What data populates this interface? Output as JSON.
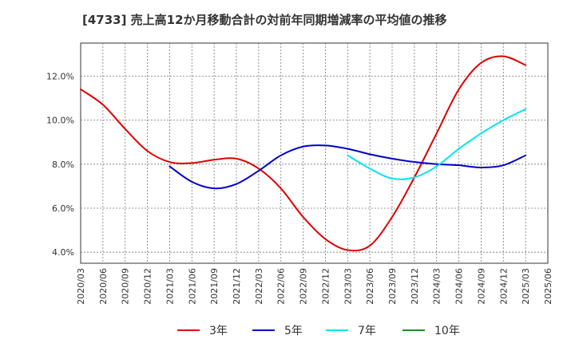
{
  "chart_data": {
    "type": "line",
    "title": "[4733]  売上高12か月移動合計の対前年同期増減率の平均値の推移",
    "xlabel": "",
    "ylabel": "",
    "ylim": [
      3.5,
      13.5
    ],
    "y_ticks": [
      4.0,
      6.0,
      8.0,
      10.0,
      12.0
    ],
    "y_tick_labels": [
      "4.0%",
      "6.0%",
      "8.0%",
      "10.0%",
      "12.0%"
    ],
    "x_range": [
      "2020/03",
      "2025/06"
    ],
    "x_tick_labels": [
      "2020/03",
      "2020/06",
      "2020/09",
      "2020/12",
      "2021/03",
      "2021/06",
      "2021/09",
      "2021/12",
      "2022/03",
      "2022/06",
      "2022/09",
      "2022/12",
      "2023/03",
      "2023/06",
      "2023/09",
      "2023/12",
      "2024/03",
      "2024/06",
      "2024/09",
      "2024/12",
      "2025/03",
      "2025/06"
    ],
    "grid": true,
    "legend_position": "bottom",
    "series": [
      {
        "name": "3年",
        "color": "#dd0000",
        "x": [
          "2020/03",
          "2020/06",
          "2020/09",
          "2020/12",
          "2021/03",
          "2021/06",
          "2021/09",
          "2021/12",
          "2022/03",
          "2022/06",
          "2022/09",
          "2022/12",
          "2023/03",
          "2023/06",
          "2023/09",
          "2023/12",
          "2024/03",
          "2024/06",
          "2024/09",
          "2024/12",
          "2025/03"
        ],
        "values": [
          11.4,
          10.7,
          9.6,
          8.6,
          8.1,
          8.05,
          8.2,
          8.25,
          7.8,
          6.9,
          5.6,
          4.6,
          4.1,
          4.3,
          5.6,
          7.4,
          9.4,
          11.4,
          12.6,
          12.9,
          12.5
        ]
      },
      {
        "name": "5年",
        "color": "#0000cc",
        "x": [
          "2021/03",
          "2021/06",
          "2021/09",
          "2021/12",
          "2022/03",
          "2022/06",
          "2022/09",
          "2022/12",
          "2023/03",
          "2023/06",
          "2023/09",
          "2023/12",
          "2024/03",
          "2024/06",
          "2024/09",
          "2024/12",
          "2025/03"
        ],
        "values": [
          7.9,
          7.2,
          6.9,
          7.1,
          7.7,
          8.4,
          8.8,
          8.85,
          8.7,
          8.45,
          8.25,
          8.1,
          8.0,
          7.95,
          7.85,
          7.95,
          8.4
        ]
      },
      {
        "name": "7年",
        "color": "#00e5ee",
        "x": [
          "2023/03",
          "2023/06",
          "2023/09",
          "2023/12",
          "2024/03",
          "2024/06",
          "2024/09",
          "2024/12",
          "2025/03"
        ],
        "values": [
          8.4,
          7.8,
          7.35,
          7.4,
          7.9,
          8.7,
          9.4,
          10.0,
          10.5
        ]
      },
      {
        "name": "10年",
        "color": "#228b22",
        "x": [],
        "values": []
      }
    ]
  }
}
